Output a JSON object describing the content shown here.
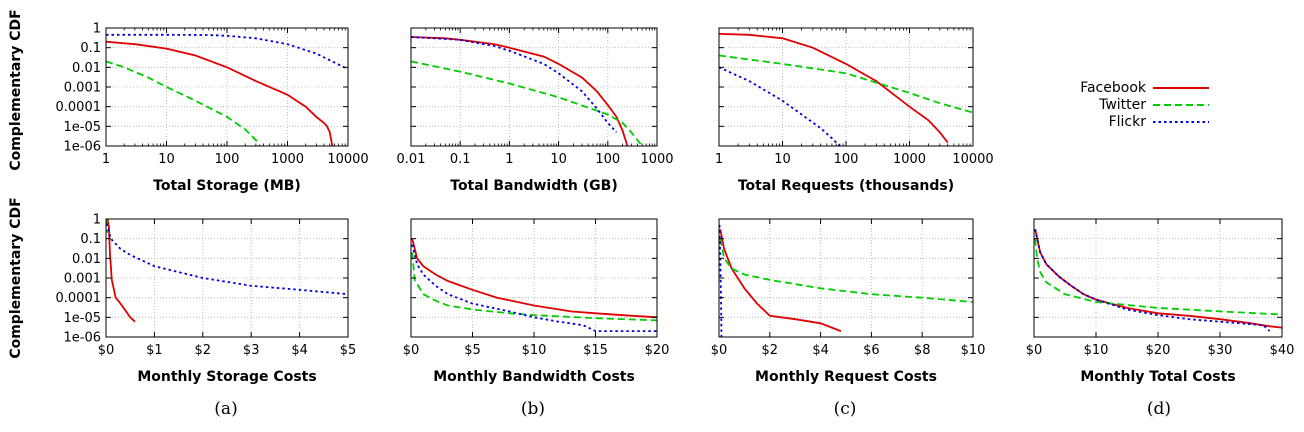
{
  "figure": {
    "ylabel": "Complementary CDF",
    "sublabels": [
      "(a)",
      "(b)",
      "(c)",
      "(d)"
    ]
  },
  "legend": {
    "entries": [
      {
        "name": "Facebook",
        "color": "#e00000",
        "dash": "solid"
      },
      {
        "name": "Twitter",
        "color": "#00cc00",
        "dash": "dashed"
      },
      {
        "name": "Flickr",
        "color": "#0000dd",
        "dash": "dotted"
      }
    ]
  },
  "chart_data": [
    {
      "type": "line",
      "xlabel": "Total Storage (MB)",
      "ylabel": "Complementary CDF",
      "xscale": "log",
      "yscale": "log",
      "xlim": [
        1,
        10000
      ],
      "ylim": [
        1e-06,
        1
      ],
      "xticks": [
        1,
        10,
        100,
        1000,
        10000
      ],
      "xtick_labels": [
        "1",
        "10",
        "100",
        "1000",
        "10000"
      ],
      "yticks": [
        1e-06,
        1e-05,
        0.0001,
        0.001,
        0.01,
        0.1,
        1
      ],
      "ytick_labels": [
        "1e-06",
        "1e-05",
        "0.0001",
        "0.001",
        "0.01",
        "0.1",
        "1"
      ],
      "grid": true,
      "series": [
        {
          "name": "Facebook",
          "x": [
            1,
            3,
            10,
            30,
            100,
            300,
            1000,
            2000,
            3000,
            4000,
            4500,
            5000,
            5500
          ],
          "y": [
            0.2,
            0.15,
            0.09,
            0.04,
            0.01,
            0.002,
            0.0004,
            0.0001,
            3e-05,
            1.5e-05,
            1e-05,
            5e-06,
            1e-06
          ]
        },
        {
          "name": "Twitter",
          "x": [
            1,
            2,
            5,
            10,
            30,
            100,
            200,
            300,
            350
          ],
          "y": [
            0.02,
            0.01,
            0.003,
            0.001,
            0.0002,
            3e-05,
            7e-06,
            2e-06,
            1e-06
          ]
        },
        {
          "name": "Flickr",
          "x": [
            1,
            10,
            50,
            100,
            300,
            1000,
            3000,
            10000
          ],
          "y": [
            0.45,
            0.45,
            0.44,
            0.4,
            0.3,
            0.15,
            0.05,
            0.008
          ]
        }
      ]
    },
    {
      "type": "line",
      "xlabel": "Total Bandwidth (GB)",
      "xscale": "log",
      "yscale": "log",
      "xlim": [
        0.01,
        1000
      ],
      "ylim": [
        1e-06,
        1
      ],
      "xticks": [
        0.01,
        0.1,
        1,
        10,
        100,
        1000
      ],
      "xtick_labels": [
        "0.01",
        "0.1",
        "1",
        "10",
        "100",
        "1000"
      ],
      "grid": true,
      "series": [
        {
          "name": "Facebook",
          "x": [
            0.01,
            0.05,
            0.1,
            0.5,
            1,
            5,
            10,
            30,
            60,
            100,
            150,
            200,
            250
          ],
          "y": [
            0.35,
            0.3,
            0.25,
            0.15,
            0.1,
            0.035,
            0.015,
            0.003,
            0.0006,
            0.00012,
            3e-05,
            6e-06,
            1e-06
          ]
        },
        {
          "name": "Twitter",
          "x": [
            0.01,
            0.1,
            1,
            10,
            100,
            200,
            300,
            500
          ],
          "y": [
            0.02,
            0.006,
            0.0015,
            0.0003,
            4e-05,
            1.5e-05,
            5e-06,
            1e-06
          ]
        },
        {
          "name": "Flickr",
          "x": [
            0.01,
            0.1,
            0.5,
            1,
            5,
            10,
            30,
            60,
            100,
            150
          ],
          "y": [
            0.35,
            0.25,
            0.12,
            0.07,
            0.015,
            0.005,
            0.0006,
            8e-05,
            1.5e-05,
            5e-06
          ]
        }
      ]
    },
    {
      "type": "line",
      "xlabel": "Total Requests (thousands)",
      "xscale": "log",
      "yscale": "log",
      "xlim": [
        1,
        10000
      ],
      "ylim": [
        1e-06,
        1
      ],
      "xticks": [
        1,
        10,
        100,
        1000,
        10000
      ],
      "xtick_labels": [
        "1",
        "10",
        "100",
        "1000",
        "10000"
      ],
      "grid": true,
      "series": [
        {
          "name": "Facebook",
          "x": [
            1,
            3,
            10,
            30,
            100,
            300,
            1000,
            2000,
            3000,
            4000
          ],
          "y": [
            0.5,
            0.45,
            0.3,
            0.1,
            0.015,
            0.002,
            0.0001,
            2e-05,
            5e-06,
            1.5e-06
          ]
        },
        {
          "name": "Twitter",
          "x": [
            1,
            10,
            100,
            1000,
            3000,
            10000
          ],
          "y": [
            0.04,
            0.015,
            0.005,
            0.0005,
            0.00015,
            5e-05
          ]
        },
        {
          "name": "Flickr",
          "x": [
            1,
            3,
            10,
            20,
            40,
            60,
            80
          ],
          "y": [
            0.01,
            0.002,
            0.0002,
            4e-05,
            8e-06,
            2.5e-06,
            1e-06
          ]
        }
      ]
    },
    {
      "type": "line",
      "xlabel": "Monthly Storage Costs",
      "xscale": "linear",
      "yscale": "log",
      "xlim": [
        0,
        5
      ],
      "ylim": [
        1e-06,
        1
      ],
      "xticks": [
        0,
        1,
        2,
        3,
        4,
        5
      ],
      "xtick_labels": [
        "$0",
        "$1",
        "$2",
        "$3",
        "$4",
        "$5"
      ],
      "grid": true,
      "series": [
        {
          "name": "Facebook",
          "x": [
            0.03,
            0.06,
            0.08,
            0.12,
            0.2,
            0.3,
            0.5,
            0.6
          ],
          "y": [
            1,
            0.4,
            0.02,
            0.0008,
            0.0001,
            5e-05,
            1e-05,
            6e-06
          ]
        },
        {
          "name": "Twitter",
          "x": [
            0.01,
            0.03
          ],
          "y": [
            1,
            0.2
          ]
        },
        {
          "name": "Flickr",
          "x": [
            0.02,
            0.05,
            0.1,
            0.3,
            0.5,
            1,
            2,
            3,
            4,
            5
          ],
          "y": [
            0.6,
            0.3,
            0.1,
            0.03,
            0.015,
            0.004,
            0.001,
            0.0004,
            0.00025,
            0.00015
          ]
        }
      ]
    },
    {
      "type": "line",
      "xlabel": "Monthly Bandwidth Costs",
      "xscale": "linear",
      "yscale": "log",
      "xlim": [
        0,
        20
      ],
      "ylim": [
        1e-06,
        1
      ],
      "xticks": [
        0,
        5,
        10,
        15,
        20
      ],
      "xtick_labels": [
        "$0",
        "$5",
        "$10",
        "$15",
        "$20"
      ],
      "grid": true,
      "series": [
        {
          "name": "Facebook",
          "x": [
            0.1,
            0.5,
            1,
            2,
            3,
            5,
            7,
            10,
            13,
            15,
            18,
            20
          ],
          "y": [
            0.1,
            0.01,
            0.004,
            0.0015,
            0.0007,
            0.00025,
            0.0001,
            4e-05,
            2e-05,
            1.6e-05,
            1.2e-05,
            1e-05
          ]
        },
        {
          "name": "Twitter",
          "x": [
            0.1,
            0.3,
            1,
            2,
            3,
            5,
            8,
            10,
            15,
            20
          ],
          "y": [
            0.02,
            0.0008,
            0.00015,
            7e-05,
            4e-05,
            2.5e-05,
            1.6e-05,
            1.3e-05,
            9e-06,
            7e-06
          ]
        },
        {
          "name": "Flickr",
          "x": [
            0.1,
            0.5,
            1,
            2,
            3,
            5,
            8,
            10,
            12,
            14,
            15,
            17,
            20
          ],
          "y": [
            0.05,
            0.005,
            0.0015,
            0.0004,
            0.00015,
            5e-05,
            2e-05,
            1e-05,
            6e-06,
            4e-06,
            2e-06,
            2e-06,
            2e-06
          ]
        }
      ]
    },
    {
      "type": "line",
      "xlabel": "Monthly Request Costs",
      "xscale": "linear",
      "yscale": "log",
      "xlim": [
        0,
        10
      ],
      "ylim": [
        1e-06,
        1
      ],
      "xticks": [
        0,
        2,
        4,
        6,
        8,
        10
      ],
      "xtick_labels": [
        "$0",
        "$2",
        "$4",
        "$6",
        "$8",
        "$10"
      ],
      "grid": true,
      "series": [
        {
          "name": "Facebook",
          "x": [
            0.05,
            0.2,
            0.5,
            1,
            1.5,
            2,
            3,
            4,
            4.8
          ],
          "y": [
            0.3,
            0.03,
            0.003,
            0.0003,
            5e-05,
            1.2e-05,
            8e-06,
            5e-06,
            2e-06
          ]
        },
        {
          "name": "Twitter",
          "x": [
            0.05,
            0.2,
            0.5,
            1,
            2,
            4,
            6,
            8,
            10
          ],
          "y": [
            0.1,
            0.01,
            0.003,
            0.0015,
            0.0008,
            0.0003,
            0.00015,
            0.0001,
            6e-05
          ]
        },
        {
          "name": "Flickr",
          "x": [
            0.02,
            0.05,
            0.08,
            0.1
          ],
          "y": [
            0.5,
            0.01,
            0.0001,
            1e-06
          ]
        }
      ]
    },
    {
      "type": "line",
      "xlabel": "Monthly Total Costs",
      "xscale": "linear",
      "yscale": "log",
      "xlim": [
        0,
        40
      ],
      "ylim": [
        1e-06,
        1
      ],
      "xticks": [
        0,
        10,
        20,
        30,
        40
      ],
      "xtick_labels": [
        "$0",
        "$10",
        "$20",
        "$30",
        "$40"
      ],
      "grid": true,
      "series": [
        {
          "name": "Facebook",
          "x": [
            0.2,
            1,
            2,
            4,
            6,
            8,
            10,
            15,
            20,
            25,
            30,
            35,
            38,
            40
          ],
          "y": [
            0.3,
            0.02,
            0.005,
            0.0012,
            0.0004,
            0.00015,
            8e-05,
            3e-05,
            1.6e-05,
            1.2e-05,
            8e-06,
            5e-06,
            3.5e-06,
            3e-06
          ]
        },
        {
          "name": "Twitter",
          "x": [
            0.2,
            0.5,
            1,
            2,
            5,
            10,
            20,
            30,
            40
          ],
          "y": [
            0.1,
            0.01,
            0.002,
            0.0006,
            0.00015,
            6e-05,
            3e-05,
            2e-05,
            1.4e-05
          ]
        },
        {
          "name": "Flickr",
          "x": [
            0.2,
            1,
            2,
            4,
            6,
            8,
            10,
            15,
            20,
            25,
            30,
            35,
            37,
            38
          ],
          "y": [
            0.3,
            0.02,
            0.005,
            0.0012,
            0.0004,
            0.00015,
            8e-05,
            2.5e-05,
            1.3e-05,
            8e-06,
            6e-06,
            4.5e-06,
            4e-06,
            2e-06
          ]
        }
      ]
    }
  ]
}
